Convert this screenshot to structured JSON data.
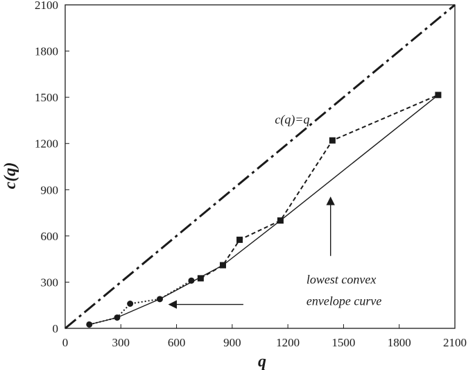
{
  "chart_data": {
    "type": "line",
    "xlabel": "q",
    "ylabel": "c(q)",
    "xlim": [
      0,
      2100
    ],
    "ylim": [
      0,
      2100
    ],
    "x_ticks": [
      "0",
      "300",
      "600",
      "900",
      "1200",
      "1500",
      "1800",
      "2100"
    ],
    "y_ticks": [
      "0",
      "300",
      "600",
      "900",
      "1200",
      "1500",
      "1800",
      "2100"
    ],
    "grid": false,
    "colors": {
      "ink": "#1a1a1a"
    },
    "series": [
      {
        "style": "dash-dot",
        "x": [
          0,
          2100
        ],
        "y": [
          0,
          2100
        ]
      },
      {
        "style": "dotted",
        "marker": "circle",
        "x": [
          130,
          280,
          350,
          510,
          680
        ],
        "y": [
          25,
          70,
          160,
          190,
          310
        ]
      },
      {
        "style": "dashed",
        "marker": "square",
        "x": [
          730,
          850,
          940,
          1160,
          1440,
          2010
        ],
        "y": [
          325,
          410,
          575,
          700,
          1220,
          1515
        ]
      },
      {
        "style": "solid",
        "x": [
          130,
          280,
          510,
          850,
          1160,
          2010
        ],
        "y": [
          25,
          70,
          190,
          410,
          700,
          1515
        ]
      }
    ],
    "annotations": [
      {
        "text": "c(q)=q",
        "x": 1130,
        "y": 1330
      },
      {
        "text": "lowest   convex",
        "x": 1300,
        "y": 290
      },
      {
        "text": "envelope curve",
        "x": 1300,
        "y": 150
      }
    ],
    "arrows": [
      {
        "from": [
          1430,
          470
        ],
        "to": [
          1430,
          850
        ]
      },
      {
        "from": [
          960,
          155
        ],
        "to": [
          560,
          155
        ]
      }
    ]
  }
}
